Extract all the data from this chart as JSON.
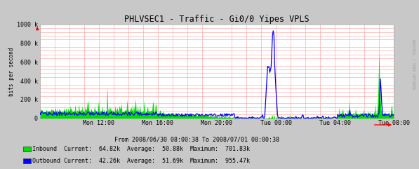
{
  "title": "PHLVSEC1 - Traffic - Gi0/0 Yipes VPLS",
  "subtitle": "From 2008/06/30 08:00:38 To 2008/07/01 08:00:38",
  "ylabel": "bits per second",
  "watermark": "RRDTOOL / TOBI OETIKER",
  "bg_color": "#c8c8c8",
  "plot_bg_color": "#ffffff",
  "grid_color": "#ff9999",
  "x_ticks_labels": [
    "Mon 12:00",
    "Mon 16:00",
    "Mon 20:00",
    "Tue 00:00",
    "Tue 04:00",
    "Tue 08:00"
  ],
  "x_ticks_pos": [
    0.1667,
    0.3333,
    0.5,
    0.6667,
    0.8333,
    1.0
  ],
  "ylim": [
    0,
    1000000
  ],
  "ytick_vals": [
    0,
    200000,
    400000,
    600000,
    800000,
    1000000
  ],
  "ytick_labels": [
    "0",
    "200 k",
    "400 k",
    "600 k",
    "800 k",
    "1000 k"
  ],
  "inbound_color": "#00e000",
  "outbound_color": "#0000ff",
  "legend": [
    {
      "label": "Inbound",
      "color": "#00e000",
      "current": "64.82k",
      "average": "50.88k",
      "maximum": "701.83k"
    },
    {
      "label": "Outbound",
      "color": "#0000ff",
      "current": "42.26k",
      "average": "51.69k",
      "maximum": "955.47k"
    }
  ],
  "n_points": 500
}
